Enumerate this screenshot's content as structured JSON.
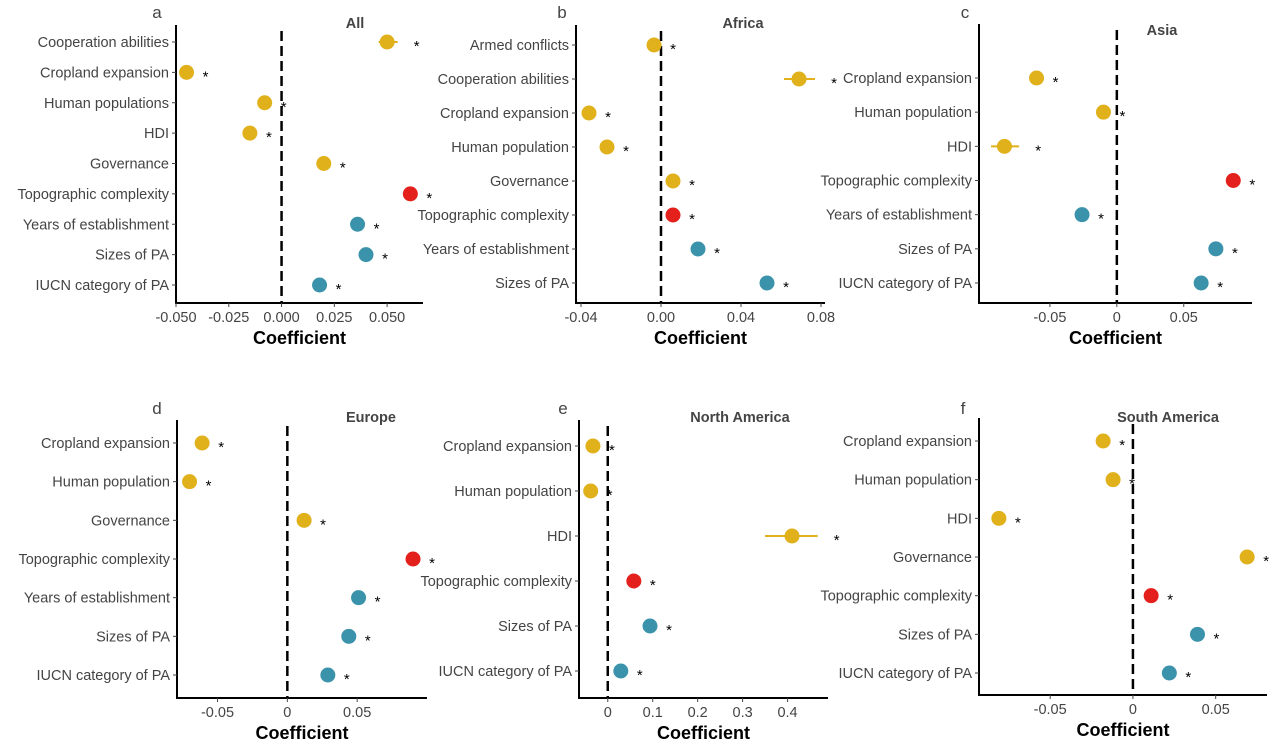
{
  "chart_data": [
    {
      "type": "scatter",
      "panel": "a",
      "title": "All",
      "xlabel": "Coefficient",
      "xlim": [
        -0.05,
        0.067
      ],
      "xticks": [
        -0.05,
        -0.025,
        0,
        0.025,
        0.05
      ],
      "xtick_labels": [
        "-0.050",
        "-0.025",
        "0.000",
        "0.025",
        "0.050"
      ],
      "categories": [
        "Cooperation abilities",
        "Cropland expansion",
        "Human populations",
        "HDI",
        "Governance",
        "Topographic complexity",
        "Years of establishment",
        "Sizes of PA",
        "IUCN category of PA"
      ],
      "values": [
        0.05,
        -0.045,
        -0.008,
        -0.015,
        0.02,
        0.061,
        0.036,
        0.04,
        0.018
      ],
      "ci": [
        [
          0.046,
          0.055
        ],
        null,
        null,
        null,
        null,
        null,
        null,
        null,
        null
      ],
      "colors": [
        "#E0B11B",
        "#E0B11B",
        "#E0B11B",
        "#E0B11B",
        "#E0B11B",
        "#E3201B",
        "#3B93AB",
        "#3B93AB",
        "#3B93AB"
      ],
      "significance": [
        "*",
        "*",
        "*",
        "*",
        "*",
        "*",
        "*",
        "*",
        "*"
      ],
      "reference_line": 0,
      "grid": false
    },
    {
      "type": "scatter",
      "panel": "b",
      "title": "Africa",
      "xlabel": "Coefficient",
      "xlim": [
        -0.0425,
        0.082
      ],
      "xticks": [
        -0.04,
        0,
        0.04,
        0.08
      ],
      "xtick_labels": [
        "-0.04",
        "0.00",
        "0.04",
        "0.08"
      ],
      "categories": [
        "Armed conflicts",
        "Cooperation abilities",
        "Cropland expansion",
        "Human population",
        "Governance",
        "Topographic complexity",
        "Years of establishment",
        "Sizes of PA"
      ],
      "values": [
        -0.0035,
        0.069,
        -0.036,
        -0.027,
        0.006,
        0.006,
        0.0185,
        0.053
      ],
      "ci": [
        null,
        [
          0.0615,
          0.077
        ],
        null,
        null,
        null,
        null,
        null,
        null
      ],
      "colors": [
        "#E0B11B",
        "#E0B11B",
        "#E0B11B",
        "#E0B11B",
        "#E0B11B",
        "#E3201B",
        "#3B93AB",
        "#3B93AB"
      ],
      "significance": [
        "*",
        "*",
        "*",
        "*",
        "*",
        "*",
        "*",
        "*"
      ],
      "reference_line": 0,
      "grid": false
    },
    {
      "type": "scatter",
      "panel": "c",
      "title": "Asia",
      "xlabel": "Coefficient",
      "xlim": [
        -0.103,
        0.101
      ],
      "xticks": [
        -0.05,
        0,
        0.05
      ],
      "xtick_labels": [
        "-0.05",
        "0",
        "0.05"
      ],
      "categories": [
        "Cropland expansion",
        "Human population",
        "HDI",
        "Topographic complexity",
        "Years of establishment",
        "Sizes of PA",
        "IUCN category of PA"
      ],
      "values": [
        -0.06,
        -0.01,
        -0.084,
        0.087,
        -0.026,
        0.074,
        0.063
      ],
      "ci": [
        null,
        null,
        [
          -0.094,
          -0.073
        ],
        null,
        null,
        null,
        null
      ],
      "colors": [
        "#E0B11B",
        "#E0B11B",
        "#E0B11B",
        "#E3201B",
        "#3B93AB",
        "#3B93AB",
        "#3B93AB"
      ],
      "significance": [
        "*",
        "*",
        "*",
        "*",
        "*",
        "*",
        "*"
      ],
      "reference_line": 0,
      "grid": false
    },
    {
      "type": "scatter",
      "panel": "d",
      "title": "Europe",
      "xlabel": "Coefficient",
      "xlim": [
        -0.079,
        0.1
      ],
      "xticks": [
        -0.05,
        0,
        0.05
      ],
      "xtick_labels": [
        "-0.05",
        "0",
        "0.05"
      ],
      "categories": [
        "Cropland expansion",
        "Human population",
        "Governance",
        "Topographic complexity",
        "Years of establishment",
        "Sizes of PA",
        "IUCN category of PA"
      ],
      "values": [
        -0.061,
        -0.07,
        0.012,
        0.09,
        0.051,
        0.044,
        0.029
      ],
      "ci": [
        null,
        null,
        null,
        null,
        null,
        null,
        null
      ],
      "colors": [
        "#E0B11B",
        "#E0B11B",
        "#E0B11B",
        "#E3201B",
        "#3B93AB",
        "#3B93AB",
        "#3B93AB"
      ],
      "significance": [
        "*",
        "*",
        "*",
        "*",
        "*",
        "*",
        "*"
      ],
      "reference_line": 0,
      "grid": false
    },
    {
      "type": "scatter",
      "panel": "e",
      "title": "North America",
      "xlabel": "Coefficient",
      "xlim": [
        -0.064,
        0.49
      ],
      "xticks": [
        0,
        0.1,
        0.2,
        0.3,
        0.4
      ],
      "xtick_labels": [
        "0",
        "0.1",
        "0.2",
        "0.3",
        "0.4"
      ],
      "categories": [
        "Cropland expansion",
        "Human population",
        "HDI",
        "Topographic complexity",
        "Sizes of PA",
        "IUCN category of PA"
      ],
      "values": [
        -0.033,
        -0.038,
        0.41,
        0.058,
        0.094,
        0.029
      ],
      "ci": [
        null,
        null,
        [
          0.35,
          0.467
        ],
        null,
        null,
        null
      ],
      "colors": [
        "#E0B11B",
        "#E0B11B",
        "#E0B11B",
        "#E3201B",
        "#3B93AB",
        "#3B93AB"
      ],
      "significance": [
        "*",
        "*",
        "*",
        "*",
        "*",
        "*"
      ],
      "reference_line": 0,
      "grid": false
    },
    {
      "type": "scatter",
      "panel": "f",
      "title": "South America",
      "xlabel": "Coefficient",
      "xlim": [
        -0.093,
        0.081
      ],
      "xticks": [
        -0.05,
        0,
        0.05
      ],
      "xtick_labels": [
        "-0.05",
        "0",
        "0.05"
      ],
      "categories": [
        "Cropland expansion",
        "Human population",
        "HDI",
        "Governance",
        "Topographic complexity",
        "Sizes of PA",
        "IUCN category of PA"
      ],
      "values": [
        -0.018,
        -0.012,
        -0.081,
        0.069,
        0.011,
        0.039,
        0.022
      ],
      "ci": [
        null,
        null,
        null,
        null,
        null,
        null,
        null
      ],
      "colors": [
        "#E0B11B",
        "#E0B11B",
        "#E0B11B",
        "#E0B11B",
        "#E3201B",
        "#3B93AB",
        "#3B93AB"
      ],
      "significance": [
        "*",
        "*",
        "*",
        "*",
        "*",
        "*",
        "*"
      ],
      "reference_line": 0,
      "grid": false
    }
  ]
}
